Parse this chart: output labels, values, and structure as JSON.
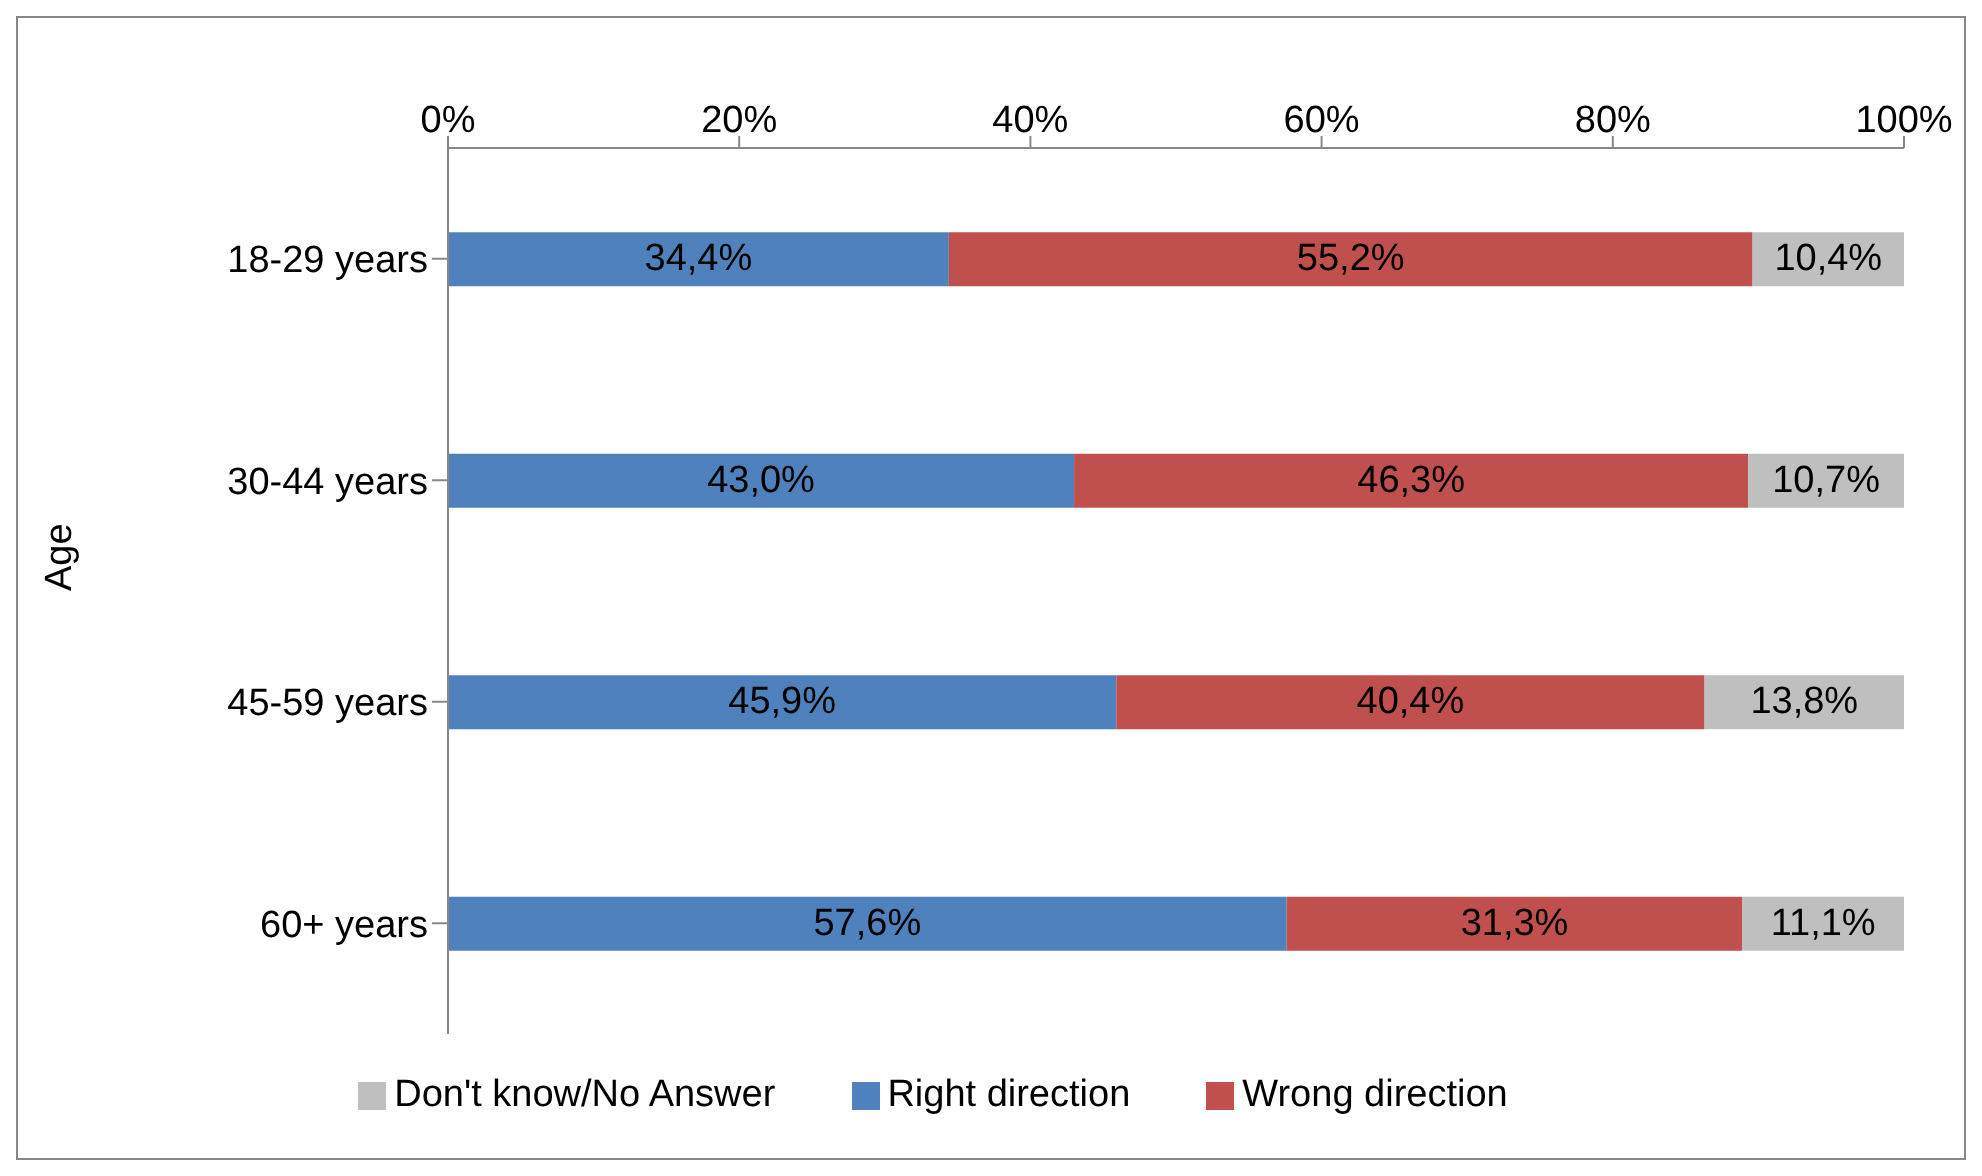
{
  "chart_data": {
    "type": "bar",
    "orientation": "horizontal",
    "stacked": true,
    "ylabel": "Age",
    "categories": [
      "18-29 years",
      "30-44 years",
      "45-59 years",
      "60+ years"
    ],
    "series": [
      {
        "name": "Right direction",
        "color": "#4f81bd",
        "values": [
          34.4,
          43.0,
          45.9,
          57.6
        ],
        "value_labels": [
          "34,4%",
          "43,0%",
          "45,9%",
          "57,6%"
        ]
      },
      {
        "name": "Wrong direction",
        "color": "#c0504d",
        "values": [
          55.2,
          46.3,
          40.4,
          31.3
        ],
        "value_labels": [
          "55,2%",
          "46,3%",
          "40,4%",
          "31,3%"
        ]
      },
      {
        "name": "Don't know/No Answer",
        "color": "#bfbfbf",
        "values": [
          10.4,
          10.7,
          13.8,
          11.1
        ],
        "value_labels": [
          "10,4%",
          "10,7%",
          "13,8%",
          "11,1%"
        ]
      }
    ],
    "xlim": [
      0,
      100
    ],
    "xticks": [
      {
        "value": 0,
        "label": "0%"
      },
      {
        "value": 20,
        "label": "20%"
      },
      {
        "value": 40,
        "label": "40%"
      },
      {
        "value": 60,
        "label": "60%"
      },
      {
        "value": 80,
        "label": "80%"
      },
      {
        "value": 100,
        "label": "100%"
      }
    ],
    "legend": "bottom"
  }
}
